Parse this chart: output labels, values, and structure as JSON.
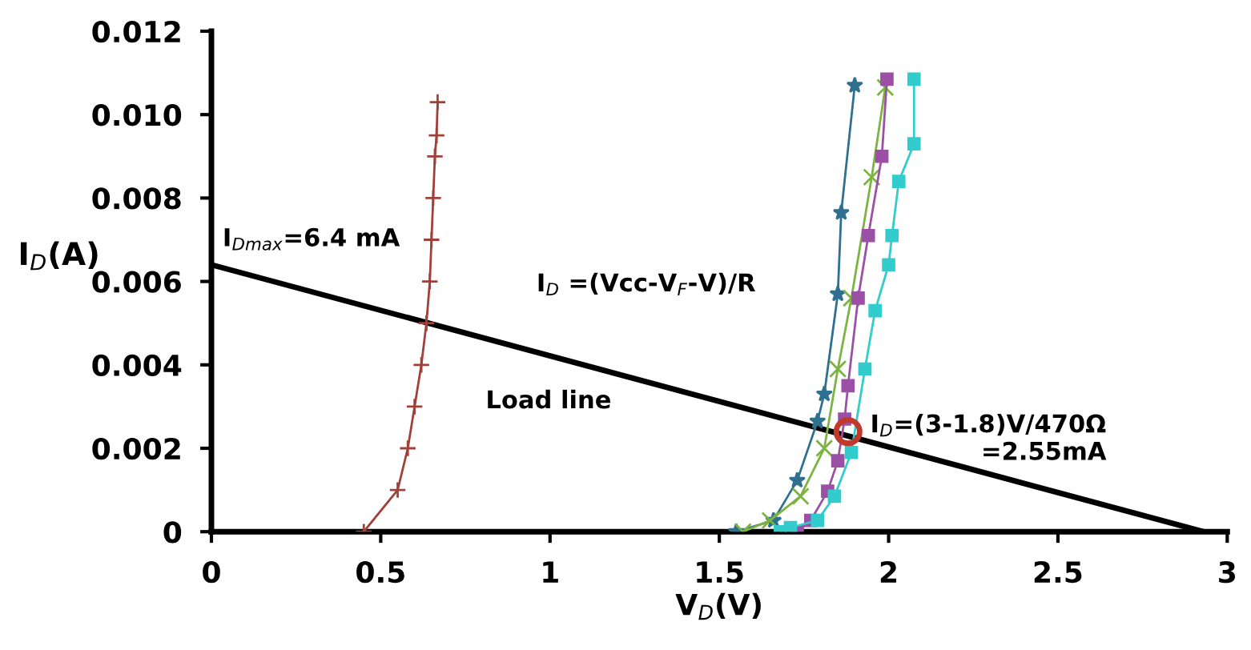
{
  "chart_data": {
    "type": "line",
    "xlabel": "V$_{D}$(V)",
    "ylabel": "I$_{D}$(A)",
    "xlim": [
      0,
      3
    ],
    "ylim": [
      0,
      0.012
    ],
    "xticks": [
      0,
      0.5,
      1,
      1.5,
      2,
      2.5,
      3
    ],
    "yticks": [
      0,
      {
        "value": 0.002,
        "label": "0.002"
      },
      {
        "value": 0.004,
        "label": "0.004"
      },
      {
        "value": 0.006,
        "label": "0.006"
      },
      {
        "value": 0.008,
        "label": "0.008"
      },
      {
        "value": 0.01,
        "label": "0.010"
      },
      {
        "value": 0.012,
        "label": "0.012"
      }
    ],
    "grid": false,
    "legend": false,
    "series": [
      {
        "color": "#a0403a",
        "marker": "cross",
        "x": [
          0.45,
          0.55,
          0.58,
          0.6,
          0.62,
          0.635,
          0.645,
          0.65,
          0.655,
          0.66,
          0.665,
          0.668
        ],
        "values": [
          0,
          0.001,
          0.002,
          0.003,
          0.004,
          0.005,
          0.006,
          0.007,
          0.008,
          0.009,
          0.0095,
          0.0103
        ]
      },
      {
        "color": "#2f6f8f",
        "marker": "star",
        "x": [
          1.55,
          1.66,
          1.73,
          1.79,
          1.81,
          1.85,
          1.86,
          1.9
        ],
        "values": [
          0,
          0.00027,
          0.00123,
          0.00265,
          0.0033,
          0.0057,
          0.00765,
          0.0107
        ]
      },
      {
        "color": "#7cb342",
        "marker": "x",
        "x": [
          1.57,
          1.65,
          1.74,
          1.81,
          1.85,
          1.89,
          1.95,
          1.99
        ],
        "values": [
          0,
          0.00027,
          0.00085,
          0.002,
          0.0039,
          0.0056,
          0.0085,
          0.01065
        ]
      },
      {
        "color": "#9b4fa5",
        "marker": "square",
        "x": [
          1.73,
          1.77,
          1.82,
          1.85,
          1.87,
          1.88,
          1.91,
          1.94,
          1.98,
          1.995
        ],
        "values": [
          0,
          0.00027,
          0.00097,
          0.0017,
          0.0027,
          0.0035,
          0.0056,
          0.0071,
          0.009,
          0.01085
        ]
      },
      {
        "color": "#33cccc",
        "marker": "square",
        "x": [
          1.68,
          1.71,
          1.79,
          1.84,
          1.89,
          1.93,
          1.96,
          2.0,
          2.01,
          2.03,
          2.075,
          2.075
        ],
        "values": [
          0,
          0.0001,
          0.00027,
          0.00085,
          0.0019,
          0.0039,
          0.0053,
          0.0064,
          0.0071,
          0.0084,
          0.0093,
          0.01085
        ]
      },
      {
        "color": "#000000",
        "marker": "none",
        "x": [
          0,
          2.93
        ],
        "values": [
          0.0064,
          0
        ]
      },
      {
        "type": "scatter",
        "color": "#c0392b",
        "marker": "circle",
        "x": [
          1.88
        ],
        "values": [
          0.0024
        ]
      }
    ],
    "annotations": [
      {
        "text": "I$_{Dmax}$=6.4 mA",
        "x": 0,
        "y": 0.0064
      },
      "I$_{D}$ =(Vcc-V$_{F}$-V)/R",
      "Load line",
      {
        "text": "I$_{D}$=(3-1.8)V/470Ω\n=2.55mA",
        "x": 1.88,
        "y": 0.0024
      }
    ]
  }
}
